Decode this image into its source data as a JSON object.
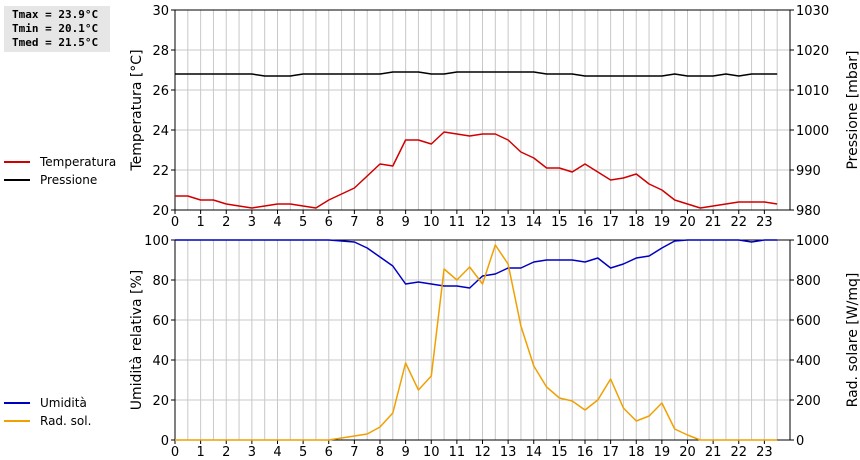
{
  "stats": {
    "tmax": "Tmax = 23.9°C",
    "tmin": "Tmin = 20.1°C",
    "tmed": "Tmed = 21.5°C"
  },
  "colors": {
    "temperature": "#d00000",
    "pressure": "#000000",
    "humidity": "#0000c0",
    "radiation": "#f0a000",
    "grid": "#c8c8c8"
  },
  "chart_data": [
    {
      "type": "line",
      "xlabel": "",
      "ylabel": "Temperatura [°C]",
      "y2label": "Pressione [mbar]",
      "xlim": [
        0,
        24
      ],
      "ylim": [
        20,
        30
      ],
      "y2lim": [
        980,
        1030
      ],
      "grid": true,
      "legend_placement": "left",
      "xticks": [
        "0",
        "1",
        "2",
        "3",
        "4",
        "5",
        "6",
        "7",
        "8",
        "9",
        "10",
        "11",
        "12",
        "13",
        "14",
        "15",
        "16",
        "17",
        "18",
        "19",
        "20",
        "21",
        "22",
        "23"
      ],
      "yticks": [
        "20",
        "22",
        "24",
        "26",
        "28",
        "30"
      ],
      "y2ticks": [
        "980",
        "990",
        "1000",
        "1010",
        "1020",
        "1030"
      ],
      "x": [
        0,
        0.5,
        1,
        1.5,
        2,
        2.5,
        3,
        3.5,
        4,
        4.5,
        5,
        5.5,
        6,
        6.5,
        7,
        7.5,
        8,
        8.5,
        9,
        9.5,
        10,
        10.5,
        11,
        11.5,
        12,
        12.5,
        13,
        13.5,
        14,
        14.5,
        15,
        15.5,
        16,
        16.5,
        17,
        17.5,
        18,
        18.5,
        19,
        19.5,
        20,
        20.5,
        21,
        21.5,
        22,
        22.5,
        23,
        23.5
      ],
      "series": [
        {
          "name": "Temperatura",
          "axis": "left",
          "color": "#d00000",
          "values": [
            20.7,
            20.7,
            20.5,
            20.5,
            20.3,
            20.2,
            20.1,
            20.2,
            20.3,
            20.3,
            20.2,
            20.1,
            20.5,
            20.8,
            21.1,
            21.7,
            22.3,
            22.2,
            23.5,
            23.5,
            23.3,
            23.9,
            23.8,
            23.7,
            23.8,
            23.8,
            23.5,
            22.9,
            22.6,
            22.1,
            22.1,
            21.9,
            22.3,
            21.9,
            21.5,
            21.6,
            21.8,
            21.3,
            21.0,
            20.5,
            20.3,
            20.1,
            20.2,
            20.3,
            20.4,
            20.4,
            20.4,
            20.3
          ]
        },
        {
          "name": "Pressione",
          "axis": "right",
          "color": "#000000",
          "values": [
            1014,
            1014,
            1014,
            1014,
            1014,
            1014,
            1014,
            1013.5,
            1013.5,
            1013.5,
            1014,
            1014,
            1014,
            1014,
            1014,
            1014,
            1014,
            1014.5,
            1014.5,
            1014.5,
            1014,
            1014,
            1014.5,
            1014.5,
            1014.5,
            1014.5,
            1014.5,
            1014.5,
            1014.5,
            1014,
            1014,
            1014,
            1013.5,
            1013.5,
            1013.5,
            1013.5,
            1013.5,
            1013.5,
            1013.5,
            1014,
            1013.5,
            1013.5,
            1013.5,
            1014,
            1013.5,
            1014,
            1014,
            1014
          ]
        }
      ]
    },
    {
      "type": "line",
      "xlabel": "",
      "ylabel": "Umidità relativa [%]",
      "y2label": "Rad. solare [W/mq]",
      "xlim": [
        0,
        24
      ],
      "ylim": [
        0,
        100
      ],
      "y2lim": [
        0,
        1000
      ],
      "grid": true,
      "legend_placement": "left",
      "xticks": [
        "0",
        "1",
        "2",
        "3",
        "4",
        "5",
        "6",
        "7",
        "8",
        "9",
        "10",
        "11",
        "12",
        "13",
        "14",
        "15",
        "16",
        "17",
        "18",
        "19",
        "20",
        "21",
        "22",
        "23"
      ],
      "yticks": [
        "0",
        "20",
        "40",
        "60",
        "80",
        "100"
      ],
      "y2ticks": [
        "0",
        "200",
        "400",
        "600",
        "800",
        "1000"
      ],
      "x": [
        0,
        0.5,
        1,
        1.5,
        2,
        2.5,
        3,
        3.5,
        4,
        4.5,
        5,
        5.5,
        6,
        6.5,
        7,
        7.5,
        8,
        8.5,
        9,
        9.5,
        10,
        10.5,
        11,
        11.5,
        12,
        12.5,
        13,
        13.5,
        14,
        14.5,
        15,
        15.5,
        16,
        16.5,
        17,
        17.5,
        18,
        18.5,
        19,
        19.5,
        20,
        20.5,
        21,
        21.5,
        22,
        22.5,
        23,
        23.5
      ],
      "series": [
        {
          "name": "Umidità",
          "axis": "left",
          "color": "#0000c0",
          "values": [
            100,
            100,
            100,
            100,
            100,
            100,
            100,
            100,
            100,
            100,
            100,
            100,
            100,
            99.5,
            99,
            96,
            91.5,
            87,
            78,
            79,
            78,
            77,
            77,
            76,
            82,
            83,
            86,
            86,
            89,
            90,
            90,
            90,
            89,
            91,
            86,
            88,
            91,
            92,
            96,
            99.5,
            100,
            100,
            100,
            100,
            100,
            99,
            100,
            100
          ]
        },
        {
          "name": "Rad. sol.",
          "axis": "right",
          "color": "#f0a000",
          "values": [
            0,
            0,
            0,
            0,
            0,
            0,
            0,
            0,
            0,
            0,
            0,
            0,
            0,
            10,
            20,
            30,
            65,
            135,
            385,
            250,
            320,
            855,
            800,
            865,
            780,
            975,
            880,
            570,
            370,
            265,
            210,
            195,
            150,
            200,
            305,
            160,
            95,
            120,
            185,
            55,
            25,
            0,
            0,
            0,
            0,
            0,
            0,
            0
          ]
        }
      ]
    }
  ]
}
